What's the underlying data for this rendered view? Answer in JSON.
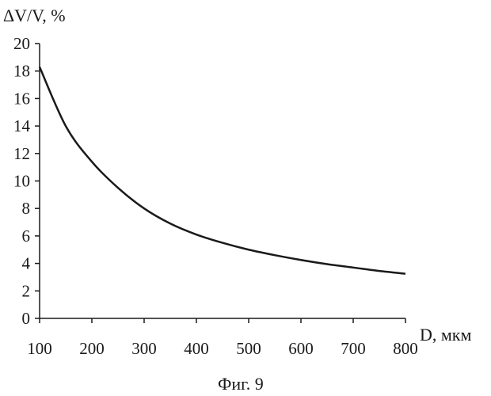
{
  "chart_data": {
    "type": "line",
    "ylabel": "ΔV/V, %",
    "xlabel": "D, мкм",
    "caption": "Фиг. 9",
    "xlim": [
      100,
      800
    ],
    "ylim": [
      0,
      20
    ],
    "x_ticks": [
      100,
      200,
      300,
      400,
      500,
      600,
      700,
      800
    ],
    "y_ticks": [
      0,
      2,
      4,
      6,
      8,
      10,
      12,
      14,
      16,
      18,
      20
    ],
    "grid": false,
    "series": [
      {
        "x": [
          100,
          150,
          200,
          250,
          300,
          350,
          400,
          450,
          500,
          550,
          600,
          650,
          700,
          750,
          800
        ],
        "y": [
          18.3,
          14.0,
          11.4,
          9.5,
          8.0,
          6.9,
          6.1,
          5.5,
          5.0,
          4.6,
          4.25,
          3.95,
          3.7,
          3.45,
          3.25
        ]
      }
    ]
  }
}
